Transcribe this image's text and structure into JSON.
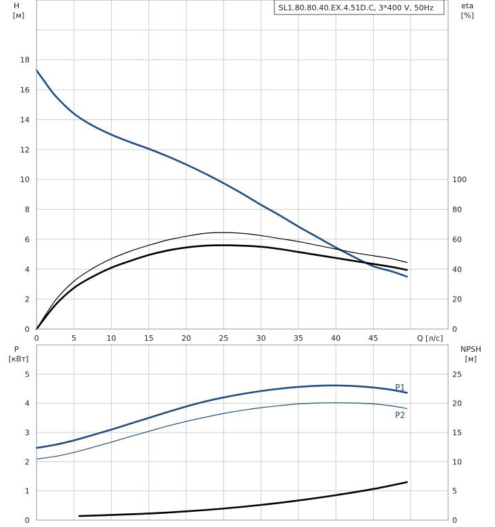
{
  "colors": {
    "grid": "#cfcfcf",
    "frame": "#999999",
    "blue": "#1f4e84",
    "black": "#000000",
    "background": "#ffffff"
  },
  "chart_data": [
    {
      "type": "line",
      "title": "SL1.80.80.40.EX.4.51D.C, 3*400 V, 50Hz",
      "xlabel": "Q [л/с]",
      "ylabel": "H",
      "ylabel_unit": "[м]",
      "y2label": "eta",
      "y2label_unit": "[%]",
      "xlim": [
        0,
        55
      ],
      "ylim": [
        0,
        22
      ],
      "y2lim": [
        0,
        220
      ],
      "x_ticks": [
        0,
        5,
        10,
        15,
        20,
        25,
        30,
        35,
        40,
        45
      ],
      "y_ticks": [
        0,
        2,
        4,
        6,
        8,
        10,
        12,
        14,
        16,
        18
      ],
      "y2_ticks": [
        0,
        20,
        40,
        60,
        80,
        100
      ],
      "grid": true,
      "series": [
        {
          "axis": "left",
          "color": "blue",
          "stroke": 2.6,
          "x": [
            0,
            1,
            2.5,
            5,
            7.5,
            10,
            12.5,
            15,
            17.5,
            20,
            22.5,
            25,
            27.5,
            30,
            32.5,
            35,
            37.5,
            40,
            42.5,
            45,
            47.5,
            49.5
          ],
          "y": [
            17.3,
            16.6,
            15.6,
            14.4,
            13.6,
            13.0,
            12.5,
            12.05,
            11.55,
            11.0,
            10.4,
            9.75,
            9.05,
            8.3,
            7.6,
            6.85,
            6.15,
            5.45,
            4.8,
            4.2,
            3.85,
            3.5
          ]
        },
        {
          "axis": "right",
          "color": "black",
          "stroke": 1.2,
          "x": [
            0,
            2.5,
            5,
            7.5,
            10,
            12.5,
            15,
            17.5,
            20,
            22.5,
            25,
            27.5,
            30,
            32.5,
            35,
            37.5,
            40,
            42.5,
            45,
            47.5,
            49.5
          ],
          "y": [
            0,
            19,
            32,
            40.5,
            47,
            52,
            56,
            59.5,
            62,
            64,
            64.5,
            64,
            62.5,
            60.5,
            58.5,
            56,
            53.5,
            51,
            49,
            47,
            44.5
          ]
        },
        {
          "axis": "right",
          "color": "black",
          "stroke": 2.6,
          "x": [
            0,
            2.5,
            5,
            7.5,
            10,
            12.5,
            15,
            17.5,
            20,
            22.5,
            25,
            27.5,
            30,
            32.5,
            35,
            37.5,
            40,
            42.5,
            45,
            47.5,
            49.5
          ],
          "y": [
            0,
            16,
            27.5,
            35,
            41,
            45.5,
            49.5,
            52.5,
            54.5,
            55.7,
            56,
            55.7,
            55,
            53.5,
            51.5,
            49.5,
            47.5,
            45.5,
            43.5,
            41.5,
            39.5
          ]
        }
      ]
    },
    {
      "type": "line",
      "xlim": [
        0,
        55
      ],
      "ylim": [
        0,
        6
      ],
      "y2lim": [
        0,
        30
      ],
      "ylabel": "P",
      "ylabel_unit": "[кВт]",
      "y2label": "NPSH",
      "y2label_unit": "[м]",
      "x_ticks": [
        0,
        5,
        10,
        15,
        20,
        25,
        30,
        35,
        40,
        45
      ],
      "y_ticks": [
        0,
        1,
        2,
        3,
        4,
        5
      ],
      "y2_ticks": [
        0,
        5,
        10,
        15,
        20,
        25
      ],
      "grid": true,
      "series": [
        {
          "name": "P1",
          "axis": "left",
          "color": "blue",
          "stroke": 2.6,
          "x": [
            0,
            2.5,
            5,
            7.5,
            10,
            12.5,
            15,
            17.5,
            20,
            22.5,
            25,
            27.5,
            30,
            32.5,
            35,
            37.5,
            40,
            42.5,
            45,
            47.5,
            49.5
          ],
          "y": [
            2.47,
            2.58,
            2.73,
            2.91,
            3.1,
            3.3,
            3.5,
            3.7,
            3.89,
            4.06,
            4.2,
            4.32,
            4.42,
            4.5,
            4.56,
            4.6,
            4.61,
            4.59,
            4.54,
            4.46,
            4.36
          ]
        },
        {
          "name": "P2",
          "axis": "left",
          "color": "blue",
          "stroke": 1.2,
          "x": [
            0,
            2.5,
            5,
            7.5,
            10,
            12.5,
            15,
            17.5,
            20,
            22.5,
            25,
            27.5,
            30,
            32.5,
            35,
            37.5,
            40,
            42.5,
            45,
            47.5,
            49.5
          ],
          "y": [
            2.09,
            2.18,
            2.32,
            2.49,
            2.67,
            2.86,
            3.04,
            3.22,
            3.38,
            3.52,
            3.65,
            3.76,
            3.85,
            3.92,
            3.98,
            4.01,
            4.02,
            4.01,
            3.98,
            3.91,
            3.82
          ]
        },
        {
          "axis": "right",
          "color": "black",
          "stroke": 2.6,
          "x": [
            5.7,
            10,
            15,
            20,
            25,
            30,
            35,
            40,
            45,
            49.5
          ],
          "y": [
            0.7,
            0.88,
            1.13,
            1.5,
            1.98,
            2.6,
            3.36,
            4.27,
            5.32,
            6.5
          ]
        }
      ]
    }
  ]
}
